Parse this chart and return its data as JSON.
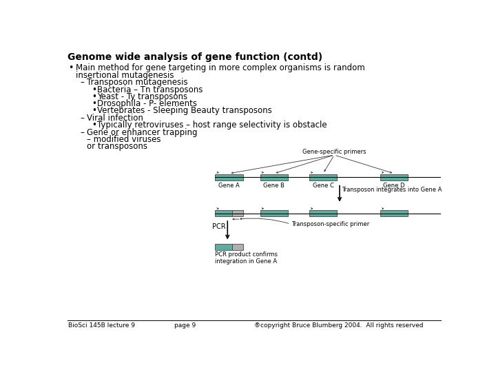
{
  "title": "Genome wide analysis of gene function (contd)",
  "bg_color": "#ffffff",
  "text_color": "#000000",
  "bullet_main_line1": "Main method for gene targeting in more complex organisms is random",
  "bullet_main_line2": "insertional mutagenesis",
  "sub1_header": "Transposon mutagenesis",
  "sub1_bullets": [
    "Bacteria – Tn transposons",
    "Yeast - Ty transposons",
    "Drosophila - P- elements",
    "Vertebrates - Sleeping Beauty transposons"
  ],
  "sub2_header": "Viral infection",
  "sub2_bullet": "Typically retroviruses – host range selectivity is obstacle",
  "sub3_header": "Gene or enhancer trapping",
  "sub3_line2": "– modified viruses",
  "sub3_line3": "or transposons",
  "footer_left": "BioSci 145B lecture 9",
  "footer_mid": "page 9",
  "footer_right": "®copyright Bruce Blumberg 2004.  All rights reserved",
  "gene_color": "#5fada0",
  "transposon_color": "#b0b0b0",
  "diagram_gene_labels": [
    "Gene A",
    "Gene B",
    "Gene C",
    "Gene D"
  ],
  "primer_label": "Gene-specific primers",
  "transposon_integrates_label": "Transposon integrates into Gene A",
  "transposon_primer_label": "Transposon-specific primer",
  "pcr_label": "PCR",
  "pcr_product_label": "PCR product confirms\nintegration in Gene A"
}
